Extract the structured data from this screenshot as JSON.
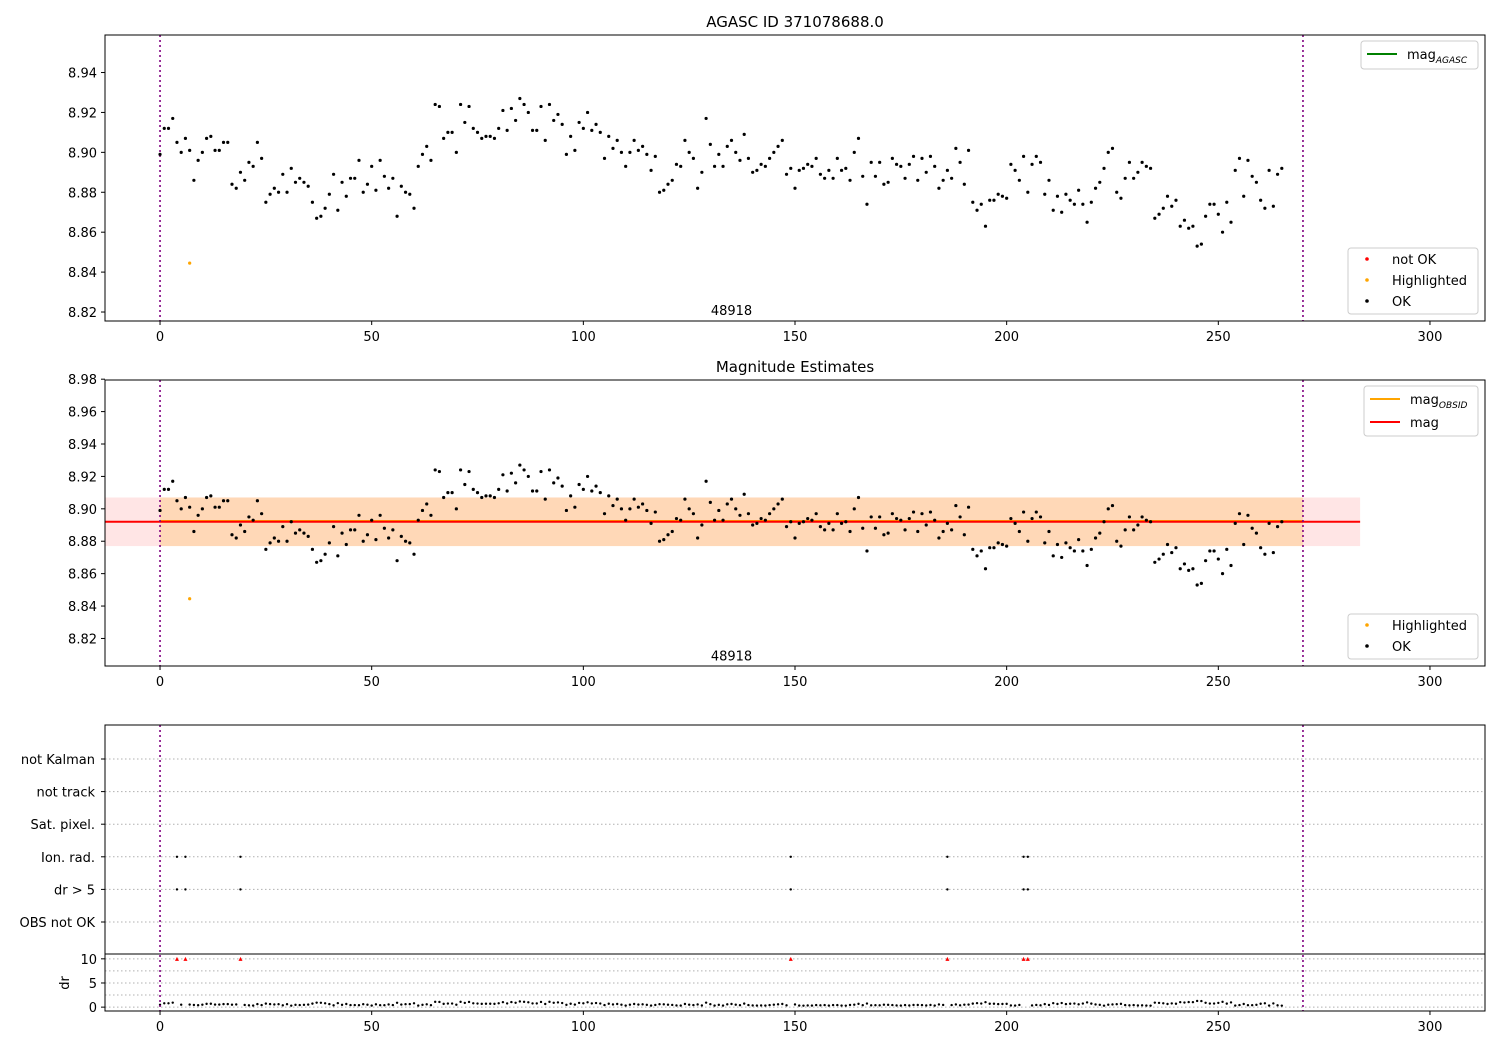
{
  "chart_data": [
    {
      "type": "scatter",
      "title": "AGASC ID 371078688.0",
      "xlabel": "",
      "ylabel": "",
      "xlim": [
        -13,
        313
      ],
      "ylim": [
        8.8155,
        8.9588
      ],
      "xticks": [
        0,
        50,
        100,
        150,
        200,
        250,
        300
      ],
      "yticks": [
        8.82,
        8.84,
        8.86,
        8.88,
        8.9,
        8.92,
        8.94
      ],
      "vlines": [
        0,
        270
      ],
      "annotation": {
        "text": "48918",
        "x": 135,
        "y": 8.8185
      },
      "legend_lines": [
        {
          "label": "mag",
          "sub": "AGASC",
          "color": "#008000"
        }
      ],
      "legend_points": [
        {
          "label": "not OK",
          "color": "#ff0000"
        },
        {
          "label": "Highlighted",
          "color": "#ffa500"
        },
        {
          "label": "OK",
          "color": "#000000"
        }
      ],
      "series": [
        {
          "name": "OK",
          "color": "#000000",
          "y": [
            8.899,
            8.912,
            8.912,
            8.917,
            8.905,
            8.9,
            8.907,
            8.901,
            8.886,
            8.896,
            8.9,
            8.907,
            8.908,
            8.901,
            8.901,
            8.905,
            8.905,
            8.884,
            8.882,
            8.89,
            8.886,
            8.895,
            8.893,
            8.905,
            8.897,
            8.875,
            8.879,
            8.882,
            8.88,
            8.889,
            8.88,
            8.892,
            8.885,
            8.887,
            8.885,
            8.883,
            8.875,
            8.867,
            8.868,
            8.872,
            8.879,
            8.889,
            8.871,
            8.885,
            8.878,
            8.887,
            8.887,
            8.896,
            8.88,
            8.884,
            8.893,
            8.881,
            8.896,
            8.888,
            8.882,
            8.887,
            8.868,
            8.883,
            8.88,
            8.879,
            8.872,
            8.893,
            8.899,
            8.903,
            8.896,
            8.924,
            8.923,
            8.907,
            8.91,
            8.91,
            8.9,
            8.924,
            8.915,
            8.923,
            8.912,
            8.91,
            8.907,
            8.908,
            8.908,
            8.907,
            8.912,
            8.921,
            8.911,
            8.922,
            8.916,
            8.927,
            8.924,
            8.92,
            8.911,
            8.911,
            8.923,
            8.906,
            8.924,
            8.916,
            8.919,
            8.914,
            8.899,
            8.908,
            8.901,
            8.915,
            8.912,
            8.92,
            8.911,
            8.914,
            8.91,
            8.897,
            8.908,
            8.902,
            8.906,
            8.9,
            8.893,
            8.9,
            8.906,
            8.901,
            8.903,
            8.899,
            8.891,
            8.898,
            8.88,
            8.881,
            8.884,
            8.886,
            8.894,
            8.893,
            8.906,
            8.9,
            8.897,
            8.882,
            8.89,
            8.917,
            8.904,
            8.893,
            8.899,
            8.893,
            8.903,
            8.906,
            8.9,
            8.896,
            8.909,
            8.897,
            8.89,
            8.891,
            8.894,
            8.893,
            8.897,
            8.9,
            8.903,
            8.906,
            8.889,
            8.892,
            8.882,
            8.891,
            8.892,
            8.894,
            8.893,
            8.897,
            8.889,
            8.887,
            8.891,
            8.887,
            8.897,
            8.891,
            8.892,
            8.886,
            8.9,
            8.907,
            8.888,
            8.874,
            8.895,
            8.888,
            8.895,
            8.884,
            8.885,
            8.897,
            8.894,
            8.893,
            8.887,
            8.894,
            8.898,
            8.886,
            8.897,
            8.89,
            8.898,
            8.893,
            8.882,
            8.886,
            8.891,
            8.887,
            8.902,
            8.895,
            8.884,
            8.901,
            8.875,
            8.871,
            8.874,
            8.863,
            8.876,
            8.876,
            8.879,
            8.878,
            8.877,
            8.894,
            8.891,
            8.886,
            8.898,
            8.88,
            8.894,
            8.898,
            8.895,
            8.879,
            8.886,
            8.871,
            8.878,
            8.87,
            8.879,
            8.876,
            8.874,
            8.881,
            8.874,
            8.865,
            8.875,
            8.882,
            8.885,
            8.892,
            8.9,
            8.902,
            8.88,
            8.877,
            8.887,
            8.895,
            8.887,
            8.89,
            8.895,
            8.893,
            8.892,
            8.867,
            8.869,
            8.872,
            8.878,
            8.873,
            8.876,
            8.863,
            8.866,
            8.862,
            8.863,
            8.853,
            8.854,
            8.868,
            8.874,
            8.874,
            8.869,
            8.86,
            8.875,
            8.865,
            8.891,
            8.897,
            8.878,
            8.896,
            8.888,
            8.885,
            8.876,
            8.872,
            8.891,
            8.873,
            8.889,
            8.892
          ]
        },
        {
          "name": "Highlighted",
          "color": "#ffa500",
          "points": [
            [
              7,
              8.8445
            ]
          ]
        }
      ]
    },
    {
      "type": "scatter",
      "title": "Magnitude Estimates",
      "xlabel": "",
      "ylabel": "",
      "xlim": [
        -13,
        313
      ],
      "ylim": [
        8.803,
        8.9795
      ],
      "xticks": [
        0,
        50,
        100,
        150,
        200,
        250,
        300
      ],
      "yticks": [
        8.82,
        8.84,
        8.86,
        8.88,
        8.9,
        8.92,
        8.94,
        8.96,
        8.98
      ],
      "vlines": [
        0,
        270
      ],
      "annotation": {
        "text": "48918",
        "x": 135,
        "y": 8.8065
      },
      "hlines": [
        {
          "label": "mag",
          "sub": "OBSID",
          "y": 8.8925,
          "x_range": [
            0,
            270
          ],
          "color": "#ffa500"
        },
        {
          "label": "mag",
          "sub": "",
          "y": 8.892,
          "x_range": [
            -13,
            283.5
          ],
          "color": "#ff0000"
        }
      ],
      "bands": [
        {
          "y_range": [
            8.877,
            8.907
          ],
          "x_range": [
            -13,
            283.5
          ],
          "color": "#ff0000",
          "alpha": 0.1
        },
        {
          "y_range": [
            8.877,
            8.907
          ],
          "x_range": [
            0,
            270
          ],
          "color": "#ffa500",
          "alpha": 0.2
        }
      ],
      "legend_points": [
        {
          "label": "Highlighted",
          "color": "#ffa500"
        },
        {
          "label": "OK",
          "color": "#000000"
        }
      ],
      "series_ref": "same OK and Highlighted samples as panel 1"
    },
    {
      "type": "scatter",
      "title": "",
      "xlim": [
        -13,
        313
      ],
      "xticks": [
        0,
        50,
        100,
        150,
        200,
        250,
        300
      ],
      "vlines": [
        0,
        270
      ],
      "flag_rows": [
        "not Kalman",
        "not track",
        "Sat. pixel.",
        "Ion. rad.",
        "dr > 5",
        "OBS not OK"
      ],
      "flags": {
        "Ion. rad.": [
          4,
          6,
          19,
          149,
          186,
          204,
          205
        ],
        "dr > 5": [
          4,
          6,
          19,
          149,
          186,
          204,
          205
        ]
      },
      "dr_panel": {
        "ylabel": "dr",
        "ylim": [
          -0.8,
          11
        ],
        "yticks": [
          0,
          5,
          10
        ],
        "clip_value": 10,
        "clipped_x": [
          4,
          6,
          19,
          149,
          186,
          204,
          205
        ]
      }
    }
  ]
}
